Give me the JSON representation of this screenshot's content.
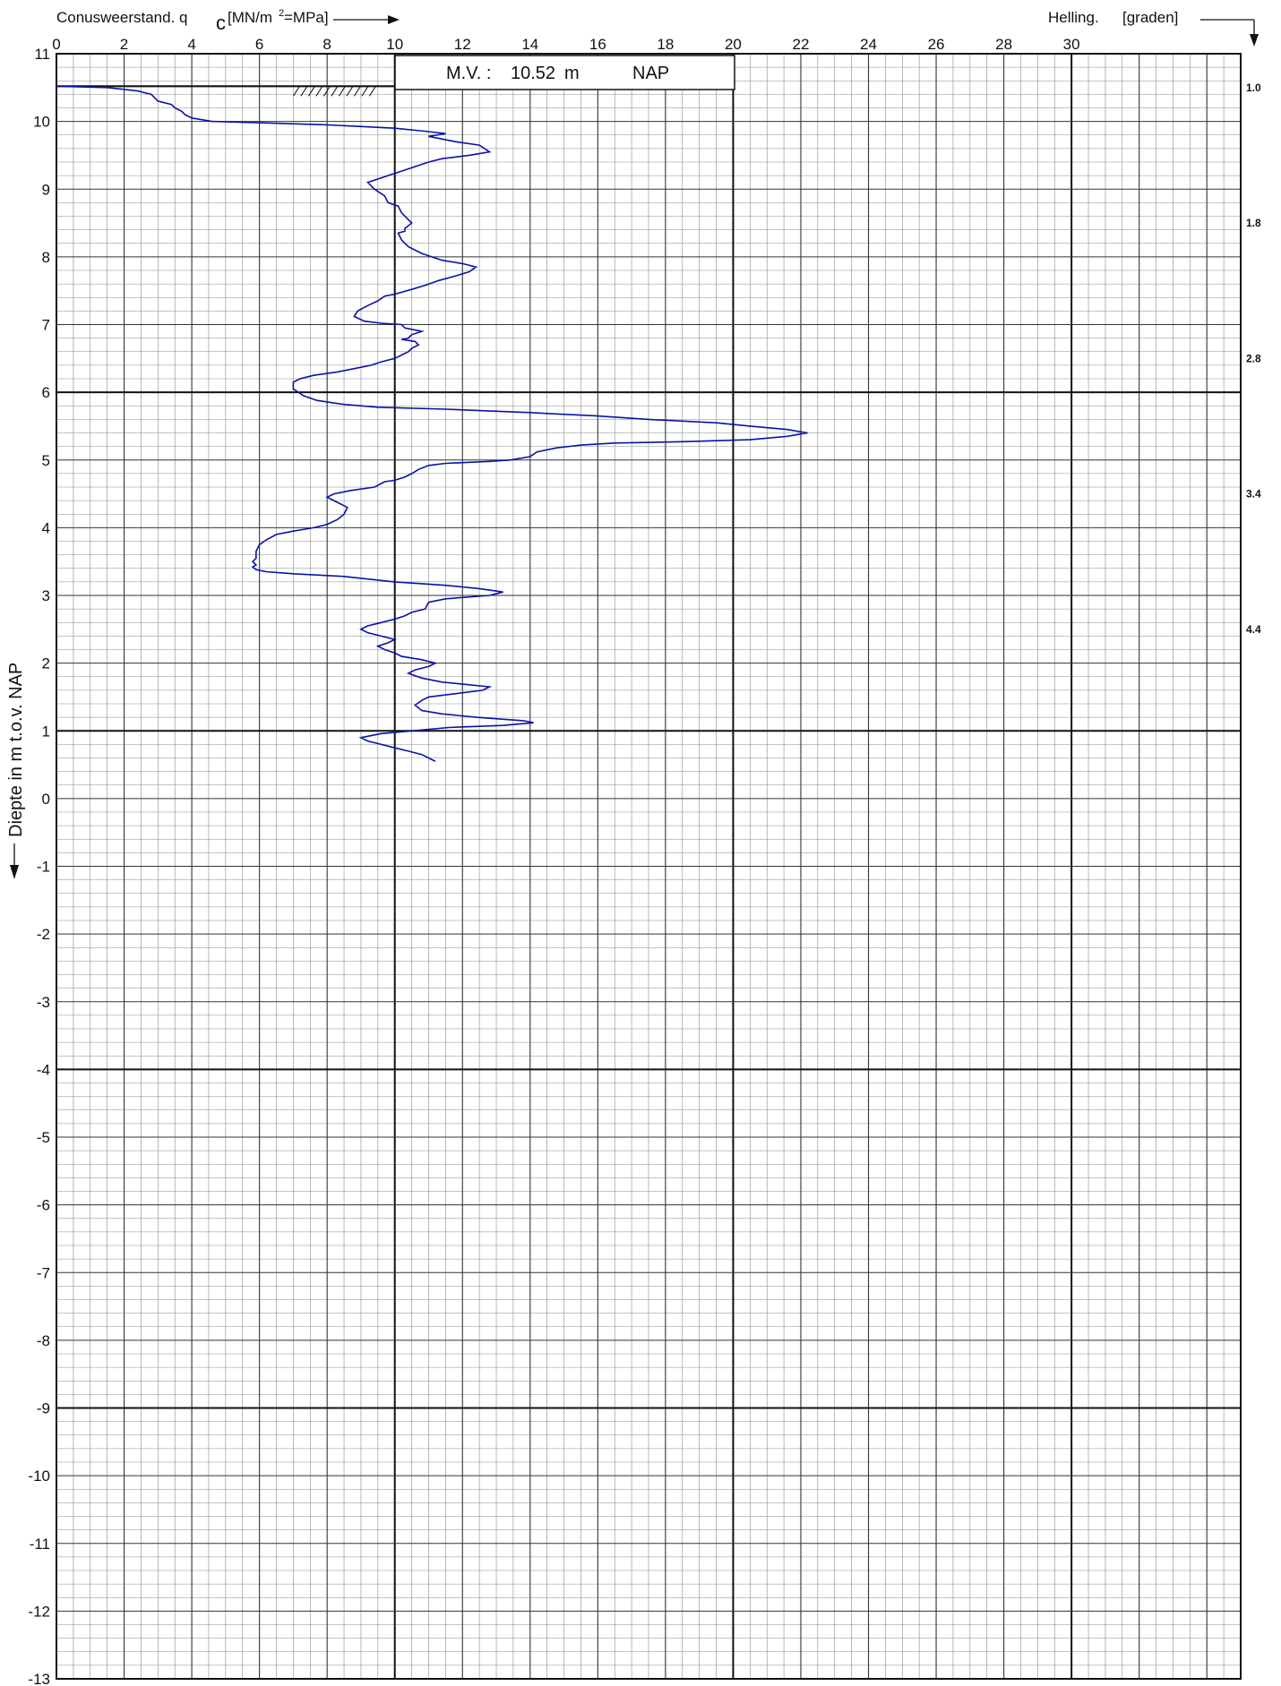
{
  "chart_data": {
    "type": "line",
    "title": "",
    "xlabel": "Conusweerstand. q",
    "xlabel_sub": "c",
    "xlabel_unit_pre": "[MN/m",
    "xlabel_unit_sup": "2",
    "xlabel_unit_post": " =MPa]",
    "ylabel": "Diepte in m t.o.v. NAP",
    "x2label_a": "Helling.",
    "x2label_b": "[graden]",
    "xlim": [
      0,
      35
    ],
    "ylim": [
      -13,
      11
    ],
    "x_ticks": [
      "0",
      "2",
      "4",
      "6",
      "8",
      "10",
      "12",
      "14",
      "16",
      "18",
      "20",
      "22",
      "24",
      "26",
      "28",
      "30"
    ],
    "y_ticks": [
      "11",
      "10",
      "9",
      "8",
      "7",
      "6",
      "5",
      "4",
      "3",
      "2",
      "1",
      "0",
      "-1",
      "-2",
      "-3",
      "-4",
      "-5",
      "-6",
      "-7",
      "-8",
      "-9",
      "-10",
      "-11",
      "-12",
      "-13"
    ],
    "grid": true,
    "annotation": {
      "prefix": "M.V. :",
      "level": "10.52",
      "unit": "m",
      "datum": "NAP"
    },
    "inclination": [
      {
        "depth": 10.5,
        "label": "1.0"
      },
      {
        "depth": 8.5,
        "label": "1.8"
      },
      {
        "depth": 6.5,
        "label": "2.8"
      },
      {
        "depth": 4.5,
        "label": "3.4"
      },
      {
        "depth": 2.5,
        "label": "4.4"
      }
    ],
    "series": [
      {
        "color": "#0a12a8",
        "points": [
          [
            0.0,
            10.52
          ],
          [
            1.5,
            10.5
          ],
          [
            2.4,
            10.45
          ],
          [
            2.8,
            10.4
          ],
          [
            3.0,
            10.3
          ],
          [
            3.4,
            10.25
          ],
          [
            3.5,
            10.2
          ],
          [
            3.7,
            10.15
          ],
          [
            3.8,
            10.1
          ],
          [
            4.0,
            10.05
          ],
          [
            4.6,
            10.0
          ],
          [
            6.0,
            9.98
          ],
          [
            8.0,
            9.95
          ],
          [
            10.0,
            9.9
          ],
          [
            11.0,
            9.85
          ],
          [
            11.5,
            9.82
          ],
          [
            11.0,
            9.78
          ],
          [
            11.8,
            9.7
          ],
          [
            12.5,
            9.65
          ],
          [
            12.8,
            9.55
          ],
          [
            12.2,
            9.5
          ],
          [
            11.4,
            9.45
          ],
          [
            11.0,
            9.4
          ],
          [
            10.4,
            9.3
          ],
          [
            9.8,
            9.2
          ],
          [
            9.2,
            9.1
          ],
          [
            9.4,
            9.0
          ],
          [
            9.7,
            8.9
          ],
          [
            9.8,
            8.8
          ],
          [
            10.1,
            8.75
          ],
          [
            10.2,
            8.65
          ],
          [
            10.4,
            8.55
          ],
          [
            10.5,
            8.5
          ],
          [
            10.3,
            8.42
          ],
          [
            10.3,
            8.38
          ],
          [
            10.1,
            8.35
          ],
          [
            10.2,
            8.25
          ],
          [
            10.4,
            8.15
          ],
          [
            10.8,
            8.05
          ],
          [
            11.4,
            7.95
          ],
          [
            12.0,
            7.9
          ],
          [
            12.4,
            7.85
          ],
          [
            12.2,
            7.78
          ],
          [
            11.8,
            7.72
          ],
          [
            11.3,
            7.65
          ],
          [
            10.9,
            7.58
          ],
          [
            10.5,
            7.52
          ],
          [
            10.0,
            7.45
          ],
          [
            9.7,
            7.42
          ],
          [
            9.5,
            7.35
          ],
          [
            9.2,
            7.28
          ],
          [
            8.9,
            7.2
          ],
          [
            8.8,
            7.12
          ],
          [
            9.1,
            7.05
          ],
          [
            9.6,
            7.02
          ],
          [
            10.2,
            7.0
          ],
          [
            10.3,
            6.95
          ],
          [
            10.8,
            6.9
          ],
          [
            10.5,
            6.85
          ],
          [
            10.4,
            6.8
          ],
          [
            10.2,
            6.78
          ],
          [
            10.6,
            6.75
          ],
          [
            10.7,
            6.7
          ],
          [
            10.5,
            6.65
          ],
          [
            10.4,
            6.6
          ],
          [
            10.2,
            6.55
          ],
          [
            10.0,
            6.5
          ],
          [
            9.6,
            6.45
          ],
          [
            9.3,
            6.4
          ],
          [
            8.8,
            6.35
          ],
          [
            8.3,
            6.3
          ],
          [
            7.6,
            6.25
          ],
          [
            7.2,
            6.2
          ],
          [
            7.0,
            6.15
          ],
          [
            7.0,
            6.05
          ],
          [
            7.3,
            5.95
          ],
          [
            7.7,
            5.88
          ],
          [
            8.5,
            5.82
          ],
          [
            9.5,
            5.78
          ],
          [
            11.5,
            5.75
          ],
          [
            14.0,
            5.7
          ],
          [
            16.0,
            5.65
          ],
          [
            17.5,
            5.6
          ],
          [
            19.5,
            5.55
          ],
          [
            20.5,
            5.5
          ],
          [
            21.6,
            5.45
          ],
          [
            22.2,
            5.4
          ],
          [
            21.6,
            5.35
          ],
          [
            20.5,
            5.3
          ],
          [
            18.5,
            5.27
          ],
          [
            16.5,
            5.25
          ],
          [
            15.5,
            5.22
          ],
          [
            14.8,
            5.18
          ],
          [
            14.2,
            5.12
          ],
          [
            14.0,
            5.05
          ],
          [
            13.4,
            5.0
          ],
          [
            12.8,
            4.98
          ],
          [
            11.5,
            4.95
          ],
          [
            11.0,
            4.92
          ],
          [
            10.7,
            4.86
          ],
          [
            10.5,
            4.8
          ],
          [
            10.3,
            4.75
          ],
          [
            10.0,
            4.7
          ],
          [
            9.7,
            4.68
          ],
          [
            9.4,
            4.6
          ],
          [
            8.7,
            4.55
          ],
          [
            8.2,
            4.5
          ],
          [
            8.0,
            4.45
          ],
          [
            8.2,
            4.4
          ],
          [
            8.4,
            4.35
          ],
          [
            8.6,
            4.3
          ],
          [
            8.5,
            4.2
          ],
          [
            8.3,
            4.12
          ],
          [
            8.0,
            4.05
          ],
          [
            7.6,
            4.0
          ],
          [
            7.0,
            3.95
          ],
          [
            6.5,
            3.9
          ],
          [
            6.2,
            3.82
          ],
          [
            6.0,
            3.75
          ],
          [
            5.9,
            3.65
          ],
          [
            5.9,
            3.55
          ],
          [
            5.8,
            3.5
          ],
          [
            5.9,
            3.45
          ],
          [
            5.8,
            3.42
          ],
          [
            5.9,
            3.38
          ],
          [
            6.2,
            3.35
          ],
          [
            7.0,
            3.32
          ],
          [
            8.5,
            3.28
          ],
          [
            10.0,
            3.2
          ],
          [
            11.5,
            3.15
          ],
          [
            12.5,
            3.1
          ],
          [
            13.2,
            3.05
          ],
          [
            12.8,
            3.0
          ],
          [
            11.5,
            2.95
          ],
          [
            11.0,
            2.9
          ],
          [
            10.9,
            2.8
          ],
          [
            10.5,
            2.75
          ],
          [
            10.3,
            2.7
          ],
          [
            10.0,
            2.65
          ],
          [
            9.6,
            2.6
          ],
          [
            9.2,
            2.55
          ],
          [
            9.0,
            2.5
          ],
          [
            9.2,
            2.45
          ],
          [
            9.6,
            2.4
          ],
          [
            10.0,
            2.35
          ],
          [
            9.8,
            2.3
          ],
          [
            9.5,
            2.25
          ],
          [
            9.7,
            2.2
          ],
          [
            10.0,
            2.15
          ],
          [
            10.2,
            2.1
          ],
          [
            10.8,
            2.05
          ],
          [
            11.2,
            2.0
          ],
          [
            11.0,
            1.95
          ],
          [
            10.6,
            1.9
          ],
          [
            10.4,
            1.85
          ],
          [
            10.8,
            1.78
          ],
          [
            11.4,
            1.72
          ],
          [
            12.2,
            1.68
          ],
          [
            12.8,
            1.65
          ],
          [
            12.6,
            1.6
          ],
          [
            11.8,
            1.55
          ],
          [
            11.0,
            1.5
          ],
          [
            10.8,
            1.45
          ],
          [
            10.6,
            1.38
          ],
          [
            10.8,
            1.3
          ],
          [
            11.4,
            1.25
          ],
          [
            12.4,
            1.2
          ],
          [
            13.8,
            1.15
          ],
          [
            14.1,
            1.12
          ],
          [
            13.2,
            1.08
          ],
          [
            11.6,
            1.05
          ],
          [
            10.5,
            1.0
          ],
          [
            9.6,
            0.96
          ],
          [
            9.2,
            0.92
          ],
          [
            9.0,
            0.9
          ],
          [
            9.2,
            0.85
          ],
          [
            9.6,
            0.8
          ],
          [
            10.0,
            0.75
          ],
          [
            10.4,
            0.7
          ],
          [
            10.8,
            0.65
          ],
          [
            11.0,
            0.6
          ],
          [
            11.2,
            0.55
          ]
        ]
      }
    ]
  }
}
